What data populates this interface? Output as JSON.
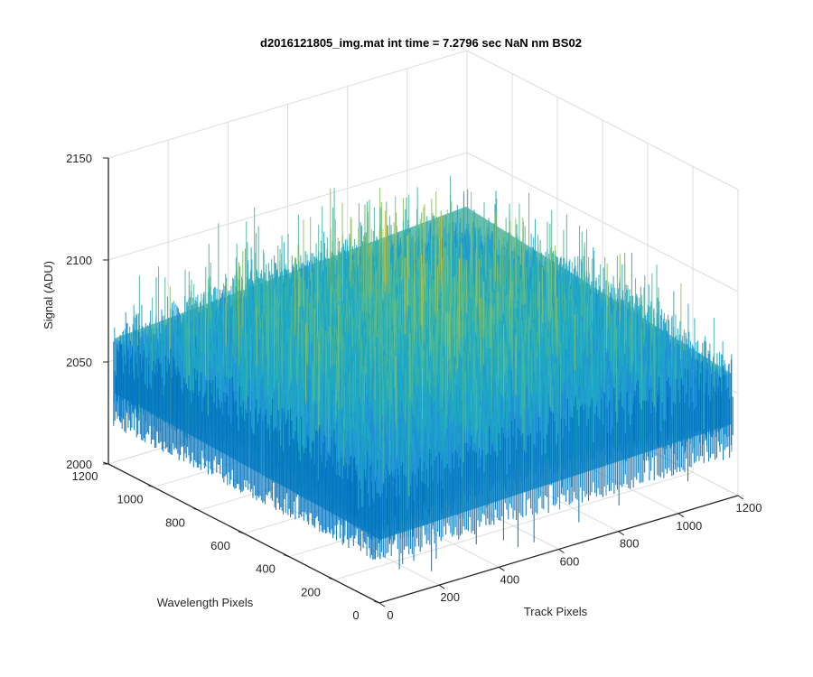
{
  "chart_data": {
    "type": "surface3d",
    "title": "d2016121805_img.mat int time = 7.2796 sec  NaN nm BS02",
    "xlabel": "Track Pixels",
    "ylabel": "Wavelength Pixels",
    "zlabel": "Signal (ADU)",
    "xlim": [
      0,
      1200
    ],
    "ylim": [
      0,
      1200
    ],
    "zlim": [
      2000,
      2150
    ],
    "xticks": [
      "0",
      "200",
      "400",
      "600",
      "800",
      "1000",
      "1200"
    ],
    "yticks": [
      "0",
      "200",
      "400",
      "600",
      "800",
      "1000",
      "1200"
    ],
    "zticks": [
      "2000",
      "2050",
      "2100",
      "2150"
    ],
    "grid": true,
    "colormap": [
      "#0072bd",
      "#1f8fd6",
      "#20a8c4",
      "#48b89a",
      "#8dbf62",
      "#c9c040",
      "#e6c835"
    ],
    "surface": {
      "mean_signal": 2070,
      "edge_signal": 2055,
      "center_signal": 2085,
      "noise_range": [
        2025,
        2150
      ]
    }
  }
}
